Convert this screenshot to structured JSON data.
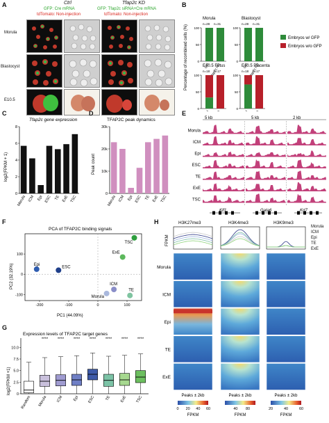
{
  "panelA": {
    "label": "A",
    "ctrl_title": "Ctrl",
    "ctrl_line1": "GFP: Cre mRNA",
    "ctrl_line2": "tdTomato: Non-injection",
    "kd_title": "Tfap2c KD",
    "kd_line1": "GFP: Tfap2c siRNA+Cre mRNA",
    "kd_line2": "tdTomato: Non-injection",
    "rows": [
      "Morula",
      "Blastocyst",
      "E10.5"
    ],
    "scale": "100 μm",
    "colors": {
      "gfp": "#2aa52a",
      "tomato": "#d9241c"
    }
  },
  "panelB": {
    "label": "B",
    "ylabel": "Percentage of recombined cells (%)",
    "legend": [
      "Embryos w/ GFP",
      "Embryos w/o GFP"
    ],
    "colors": {
      "with_gfp": "#2e8b3a",
      "without_gfp": "#b7202a"
    },
    "subplots": [
      {
        "title": "Morula",
        "n": [
          "n=28",
          "n=31"
        ],
        "with_gfp": [
          100,
          100
        ]
      },
      {
        "title": "Blastocyst",
        "n": [
          "n=28",
          "n=31"
        ],
        "with_gfp": [
          100,
          100
        ]
      },
      {
        "title": "E10.5 Fetus",
        "n": [
          "n=18",
          "n=17"
        ],
        "with_gfp": [
          33,
          0
        ]
      },
      {
        "title": "E10.5 Placenta",
        "n": [
          "n=18",
          "n=17"
        ],
        "with_gfp": [
          72,
          0
        ]
      }
    ],
    "xticks": [
      "Ctrl",
      "Tfap2c KD"
    ],
    "yticks": [
      "0",
      "50",
      "100"
    ]
  },
  "panelC": {
    "label": "C",
    "title": "Tfap2c gene expression",
    "ylabel": "log2(FPKM + 1)"
  },
  "panelD": {
    "label": "D",
    "title": "TFAP2C peak dynamics",
    "ylabel": "Peak count"
  },
  "panelE": {
    "label": "E",
    "scales": [
      "5 kb",
      "5 kb",
      "2 kb"
    ],
    "rows": [
      "Morula",
      "ICM",
      "Epi",
      "ESC",
      "TE",
      "ExE",
      "TSC"
    ],
    "genes": [
      "Klf1",
      "Gata6",
      "Krt7"
    ]
  },
  "panelF": {
    "label": "F",
    "title": "PCA of TFAP2C binding signals",
    "xlabel": "PC1 (44.09%)",
    "ylabel": "PC2 (32.19%)"
  },
  "panelG": {
    "label": "G",
    "title": "Expression levels of TFAP2C target genes",
    "ylabel": "log2(FPKM +1)",
    "sig": "****"
  },
  "panelH": {
    "label": "H",
    "marks": [
      "H3K27me3",
      "H3K4me3",
      "H3K9me3"
    ],
    "profile_ylabel": "FPKM",
    "legend": [
      "Morula",
      "ICM",
      "Epi",
      "TE",
      "ExE"
    ],
    "legend_colors": [
      "#c9c9c9",
      "#2e3a87",
      "#9bb4e0",
      "#7dc0a4",
      "#8fd37a"
    ],
    "rows": [
      "Morula",
      "ICM",
      "Epi",
      "TE",
      "ExE"
    ],
    "peaks_label": "Peaks ± 2kb",
    "fpkm_label": "FPKM",
    "colorbars": [
      {
        "ticks": [
          "0",
          "20",
          "40",
          "60"
        ]
      },
      {
        "ticks": [
          "40",
          "80"
        ]
      },
      {
        "ticks": [
          "20",
          "40",
          "60"
        ]
      }
    ]
  },
  "chart_data": [
    {
      "type": "bar",
      "panel": "C",
      "title": "Tfap2c gene expression",
      "ylabel": "log2(FPKM + 1)",
      "categories": [
        "Morula",
        "ICM",
        "Epi",
        "ESC",
        "TE",
        "ExE",
        "TSC"
      ],
      "values": [
        5.7,
        4.2,
        1.0,
        5.7,
        5.3,
        5.9,
        7.1
      ],
      "ylim": [
        0,
        8
      ],
      "yticks": [
        "0",
        "2",
        "4",
        "6",
        "8"
      ],
      "color": "#111111"
    },
    {
      "type": "bar",
      "panel": "D",
      "title": "TFAP2C peak dynamics",
      "ylabel": "Peak count",
      "categories": [
        "Morula",
        "ICM",
        "Epi",
        "ESC",
        "TE",
        "ExE",
        "TSC"
      ],
      "values": [
        23000,
        20000,
        2500,
        11500,
        23000,
        24500,
        26000
      ],
      "ylim": [
        0,
        30000
      ],
      "yticks": [
        "0",
        "10k",
        "20k",
        "30k"
      ],
      "color": "#d08fbf"
    },
    {
      "type": "scatter",
      "panel": "F",
      "title": "PCA of TFAP2C binding signals",
      "xlabel": "PC1 (44.09%)",
      "ylabel": "PC2 (32.19%)",
      "xlim": [
        -250,
        150
      ],
      "ylim": [
        -130,
        200
      ],
      "xticks": [
        "-200",
        "-100",
        "0",
        "100"
      ],
      "yticks": [
        "-100",
        "0",
        "100"
      ],
      "points": [
        {
          "label": "Morula",
          "x": 30,
          "y": -95,
          "color": "#a9b8dd"
        },
        {
          "label": "ICM",
          "x": 55,
          "y": -75,
          "color": "#8a8ec8"
        },
        {
          "label": "TE",
          "x": 110,
          "y": -105,
          "color": "#7fc4a0"
        },
        {
          "label": "Epi",
          "x": -210,
          "y": 25,
          "color": "#2f5db0"
        },
        {
          "label": "ESC",
          "x": -135,
          "y": 20,
          "color": "#1f3f8a"
        },
        {
          "label": "ExE",
          "x": 85,
          "y": 85,
          "color": "#5cb85c"
        },
        {
          "label": "TSC",
          "x": 125,
          "y": 180,
          "color": "#2e9e3e"
        }
      ]
    },
    {
      "type": "box",
      "panel": "G",
      "title": "Expression levels of TFAP2C target genes",
      "ylabel": "log2(FPKM +1)",
      "categories": [
        "Random",
        "Morula",
        "ICM",
        "Epi",
        "ESC",
        "TE",
        "ExE",
        "TSC"
      ],
      "ylim": [
        0,
        12
      ],
      "yticks": [
        "0",
        "2.5",
        "5.0",
        "7.5",
        "10.0"
      ],
      "boxes": [
        {
          "q1": 0.2,
          "median": 0.8,
          "q3": 2.7,
          "wlo": 0,
          "whi": 6.8,
          "sig": false
        },
        {
          "q1": 1.6,
          "median": 2.7,
          "q3": 4.0,
          "wlo": 0,
          "whi": 7.8,
          "sig": true
        },
        {
          "q1": 1.7,
          "median": 2.9,
          "q3": 4.1,
          "wlo": 0,
          "whi": 8.0,
          "sig": true
        },
        {
          "q1": 1.8,
          "median": 3.0,
          "q3": 4.2,
          "wlo": 0,
          "whi": 8.2,
          "sig": true
        },
        {
          "q1": 3.0,
          "median": 4.2,
          "q3": 5.3,
          "wlo": 0,
          "whi": 8.8,
          "sig": true
        },
        {
          "q1": 1.6,
          "median": 2.9,
          "q3": 4.2,
          "wlo": 0,
          "whi": 8.1,
          "sig": true
        },
        {
          "q1": 1.8,
          "median": 3.0,
          "q3": 4.4,
          "wlo": 0,
          "whi": 8.3,
          "sig": true
        },
        {
          "q1": 2.4,
          "median": 3.6,
          "q3": 5.0,
          "wlo": 0,
          "whi": 8.6,
          "sig": true
        }
      ],
      "colors": [
        "#ffffff",
        "#c9c0dc",
        "#9f9bd0",
        "#6f7fc5",
        "#3e5aa8",
        "#7cc3a6",
        "#a6d88f",
        "#6cbf5f"
      ]
    }
  ]
}
